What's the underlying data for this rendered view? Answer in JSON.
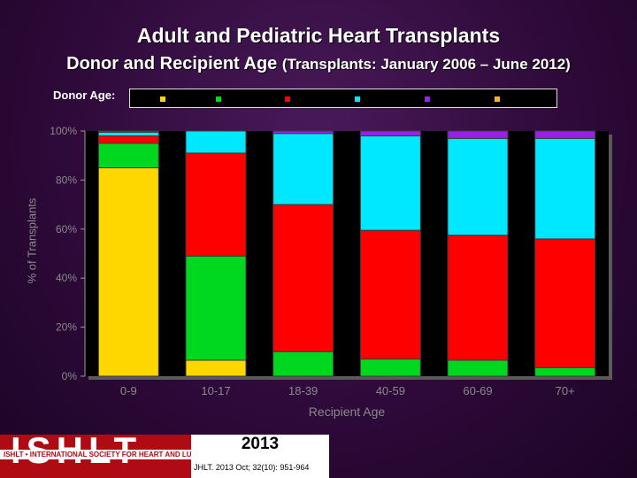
{
  "title": "Adult and Pediatric Heart Transplants",
  "subtitle_main": "Donor and Recipient Age",
  "subtitle_paren": "(Transplants: January 2006 – June 2012)",
  "legend_label": "Donor Age:",
  "colors": {
    "yellow": "#ffd700",
    "green": "#00d820",
    "red": "#ff0000",
    "cyan": "#00e8ff",
    "purple": "#9a20e8",
    "orange": "#ffb030"
  },
  "chart_data": {
    "type": "bar",
    "stacked": true,
    "title": "Adult and Pediatric Heart Transplants",
    "xlabel": "Recipient Age",
    "ylabel": "% of Transplants",
    "ylim": [
      0,
      100
    ],
    "yticks": [
      "0%",
      "20%",
      "40%",
      "60%",
      "80%",
      "100%"
    ],
    "categories": [
      "0-9",
      "10-17",
      "18-39",
      "40-59",
      "60-69",
      "70+"
    ],
    "series": [
      {
        "name": "",
        "color": "#ffd700",
        "values": [
          85,
          6.5,
          0,
          0,
          0,
          0
        ]
      },
      {
        "name": "",
        "color": "#00d820",
        "values": [
          10,
          42.5,
          10,
          7,
          6.5,
          3.5
        ]
      },
      {
        "name": "",
        "color": "#ff0000",
        "values": [
          3,
          42,
          60,
          52.5,
          51,
          52.5
        ]
      },
      {
        "name": "",
        "color": "#00e8ff",
        "values": [
          1.5,
          9,
          29,
          38.5,
          39.5,
          41
        ]
      },
      {
        "name": "",
        "color": "#9a20e8",
        "values": [
          0.5,
          0,
          1,
          2,
          3,
          3
        ]
      },
      {
        "name": "",
        "color": "#ffb030",
        "values": [
          0,
          0,
          0,
          0,
          0,
          0
        ]
      }
    ]
  },
  "footer": {
    "logo": "ISHLT",
    "org_name": "ISHLT • INTERNATIONAL SOCIETY FOR HEART AND LUNG TRANSPLANTATION",
    "year": "2013",
    "citation": "JHLT. 2013 Oct; 32(10): 951-964"
  }
}
